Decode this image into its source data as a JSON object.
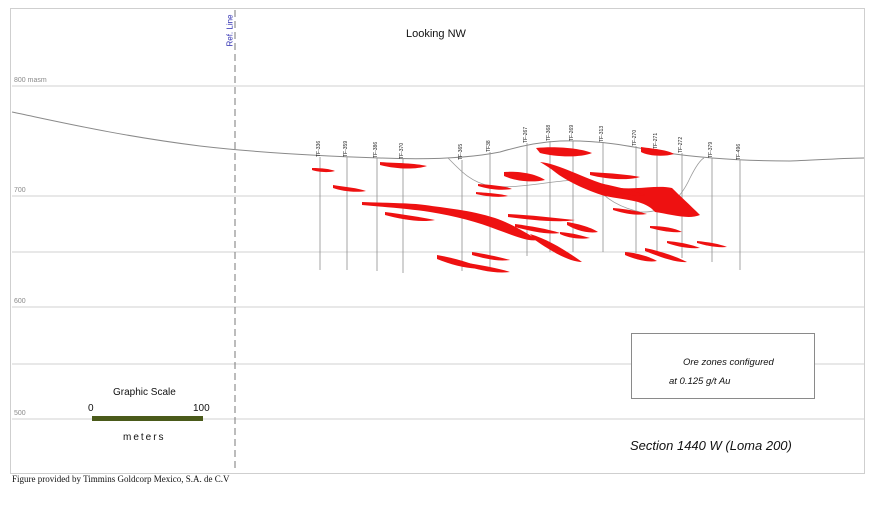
{
  "figure": {
    "ref_line_label": "Ref. Line",
    "looking_label": "Looking NW",
    "section_title": "Section 1440 W  (Loma 200)",
    "caption": "Figure provided by Timmins Goldcorp Mexico, S.A. de C.V"
  },
  "elevations": [
    "800 masm",
    "700",
    "600",
    "500"
  ],
  "drill_holes": [
    "TF-336",
    "TF-359",
    "TF-386",
    "TF-370",
    "TF-365",
    "TF38",
    "TF-267",
    "TF-368",
    "TF-269",
    "TF-313",
    "TF-270",
    "TF-271",
    "TF-272",
    "TF-379",
    "TF-496"
  ],
  "scale": {
    "title": "Graphic  Scale",
    "min": "0",
    "max": "100",
    "unit": "meters",
    "bar_color": "#4a5a1a"
  },
  "legend": {
    "line1": "Ore zones configured",
    "line2": "at 0.125 g/t Au",
    "swatch_color": "#ee1111"
  },
  "colors": {
    "ore": "#ee1111",
    "grid": "#d2d2d2",
    "ref_line": "#7a7a7a",
    "topography": "#8a8a8a"
  }
}
